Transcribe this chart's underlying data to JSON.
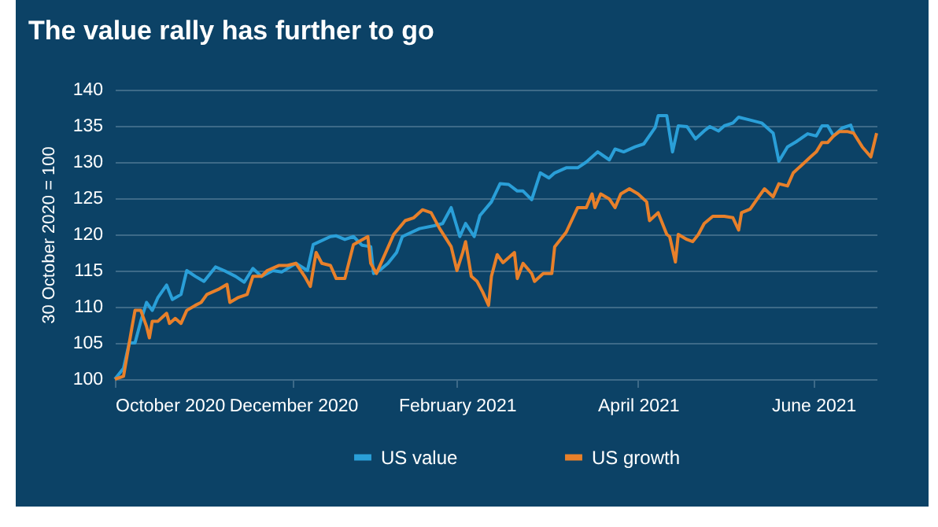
{
  "chart_data": {
    "type": "line",
    "title": "The value rally has further to go",
    "ylabel": "30 October 2020 = 100",
    "xlim": [
      "2020-10-30",
      "2021-07-22"
    ],
    "xticks": [
      {
        "value": "2020-10-30",
        "label": "October 2020"
      },
      {
        "value": "2020-12-31",
        "label": "December 2020"
      },
      {
        "value": "2021-02-26",
        "label": "February 2021"
      },
      {
        "value": "2021-04-30",
        "label": "April 2021"
      },
      {
        "value": "2021-06-30",
        "label": "June 2021"
      }
    ],
    "ylim": [
      100,
      140
    ],
    "yticks": [
      100,
      105,
      110,
      115,
      120,
      125,
      130,
      135,
      140
    ],
    "grid": "y",
    "legend": "bottom",
    "series": [
      {
        "name": "US value",
        "color": "#2a9fd8",
        "x": [
          "2020-10-30",
          "2020-11-02",
          "2020-11-04",
          "2020-11-06",
          "2020-11-08",
          "2020-11-10",
          "2020-11-12",
          "2020-11-14",
          "2020-11-17",
          "2020-11-19",
          "2020-11-22",
          "2020-11-24",
          "2020-11-27",
          "2020-11-30",
          "2020-12-04",
          "2020-12-07",
          "2020-12-11",
          "2020-12-14",
          "2020-12-17",
          "2020-12-20",
          "2020-12-24",
          "2020-12-27",
          "2021-01-01",
          "2021-01-05",
          "2021-01-07",
          "2021-01-13",
          "2021-01-15",
          "2021-01-18",
          "2021-01-21",
          "2021-01-24",
          "2021-01-27",
          "2021-01-28",
          "2021-01-30",
          "2021-02-02",
          "2021-02-05",
          "2021-02-07",
          "2021-02-13",
          "2021-02-18",
          "2021-02-21",
          "2021-02-24",
          "2021-02-27",
          "2021-03-01",
          "2021-03-04",
          "2021-03-06",
          "2021-03-10",
          "2021-03-13",
          "2021-03-16",
          "2021-03-19",
          "2021-03-21",
          "2021-03-24",
          "2021-03-27",
          "2021-03-30",
          "2021-04-01",
          "2021-04-05",
          "2021-04-09",
          "2021-04-12",
          "2021-04-16",
          "2021-04-20",
          "2021-04-22",
          "2021-04-25",
          "2021-04-29",
          "2021-05-02",
          "2021-05-06",
          "2021-05-07",
          "2021-05-10",
          "2021-05-12",
          "2021-05-14",
          "2021-05-17",
          "2021-05-20",
          "2021-05-23",
          "2021-05-25",
          "2021-05-28",
          "2021-05-30",
          "2021-06-02",
          "2021-06-04",
          "2021-06-08",
          "2021-06-12",
          "2021-06-14",
          "2021-06-16",
          "2021-06-18",
          "2021-06-21",
          "2021-06-24",
          "2021-06-28",
          "2021-07-01",
          "2021-07-03",
          "2021-07-05",
          "2021-07-07",
          "2021-07-10",
          "2021-07-13",
          "2021-07-14"
        ],
        "values": [
          100,
          101.5,
          105,
          105,
          108,
          110.6,
          109.5,
          111.3,
          113,
          111,
          111.7,
          115,
          114.2,
          113.5,
          115.5,
          115,
          114.2,
          113.4,
          115.3,
          114.2,
          115,
          114.8,
          116,
          115,
          118.6,
          119.7,
          119.8,
          119.3,
          119.7,
          118.5,
          118.3,
          114.6,
          115,
          116,
          117.5,
          119.7,
          120.8,
          121.2,
          121.5,
          123.7,
          119.7,
          121.5,
          119.7,
          122.6,
          124.5,
          127,
          126.9,
          126,
          126,
          124.8,
          128.5,
          127.8,
          128.5,
          129.2,
          129.2,
          130,
          131.4,
          130.3,
          131.8,
          131.4,
          132.1,
          132.5,
          134.8,
          136.4,
          136.4,
          131.4,
          135,
          134.9,
          133.2,
          134.3,
          134.9,
          134.3,
          135,
          135.4,
          136.2,
          135.8,
          135.4,
          134.7,
          134,
          130.1,
          132.1,
          132.8,
          133.9,
          133.6,
          135,
          135,
          133.6,
          134.7,
          135.1,
          134
        ]
      },
      {
        "name": "US growth",
        "color": "#e8802a",
        "x": [
          "2020-10-30",
          "2020-11-02",
          "2020-11-05",
          "2020-11-06",
          "2020-11-08",
          "2020-11-10",
          "2020-11-11",
          "2020-11-12",
          "2020-11-14",
          "2020-11-17",
          "2020-11-18",
          "2020-11-20",
          "2020-11-22",
          "2020-11-24",
          "2020-11-27",
          "2020-11-29",
          "2020-12-01",
          "2020-12-05",
          "2020-12-08",
          "2020-12-09",
          "2020-12-12",
          "2020-12-15",
          "2020-12-17",
          "2020-12-20",
          "2020-12-22",
          "2020-12-26",
          "2020-12-29",
          "2021-01-01",
          "2021-01-04",
          "2021-01-06",
          "2021-01-08",
          "2021-01-10",
          "2021-01-13",
          "2021-01-15",
          "2021-01-18",
          "2021-01-21",
          "2021-01-26",
          "2021-01-27",
          "2021-01-29",
          "2021-01-31",
          "2021-02-04",
          "2021-02-08",
          "2021-02-11",
          "2021-02-14",
          "2021-02-17",
          "2021-02-20",
          "2021-02-24",
          "2021-02-26",
          "2021-02-28",
          "2021-03-01",
          "2021-03-03",
          "2021-03-05",
          "2021-03-07",
          "2021-03-09",
          "2021-03-10",
          "2021-03-12",
          "2021-03-14",
          "2021-03-18",
          "2021-03-19",
          "2021-03-21",
          "2021-03-24",
          "2021-03-25",
          "2021-03-28",
          "2021-03-31",
          "2021-04-01",
          "2021-04-05",
          "2021-04-09",
          "2021-04-12",
          "2021-04-14",
          "2021-04-15",
          "2021-04-17",
          "2021-04-20",
          "2021-04-22",
          "2021-04-24",
          "2021-04-27",
          "2021-04-30",
          "2021-05-03",
          "2021-05-04",
          "2021-05-07",
          "2021-05-10",
          "2021-05-11",
          "2021-05-13",
          "2021-05-14",
          "2021-05-17",
          "2021-05-19",
          "2021-05-21",
          "2021-05-23",
          "2021-05-26",
          "2021-05-30",
          "2021-06-02",
          "2021-06-04",
          "2021-06-05",
          "2021-06-08",
          "2021-06-11",
          "2021-06-13",
          "2021-06-16",
          "2021-06-18",
          "2021-06-21",
          "2021-06-23",
          "2021-06-26",
          "2021-06-29",
          "2021-07-01",
          "2021-07-03",
          "2021-07-05",
          "2021-07-07",
          "2021-07-09",
          "2021-07-12",
          "2021-07-14",
          "2021-07-17",
          "2021-07-20",
          "2021-07-22"
        ],
        "values": [
          100,
          100.4,
          107.3,
          109.5,
          109.5,
          107.3,
          105.7,
          108,
          108,
          109.1,
          107.7,
          108.4,
          107.7,
          109.5,
          110.2,
          110.6,
          111.7,
          112.4,
          113.1,
          110.6,
          111.3,
          111.7,
          114.2,
          114.2,
          115,
          115.7,
          115.7,
          116,
          114.2,
          112.8,
          117.5,
          116,
          115.7,
          113.9,
          113.9,
          118.6,
          119.7,
          116,
          114.6,
          116.4,
          120,
          121.9,
          122.3,
          123.4,
          123,
          120.8,
          118.3,
          115,
          117.5,
          119,
          114.2,
          113.5,
          112,
          110.2,
          114.2,
          117.2,
          116.1,
          117.5,
          113.9,
          116,
          114.6,
          113.5,
          114.6,
          114.6,
          118.3,
          120.3,
          123.7,
          123.7,
          125.6,
          123.7,
          125.6,
          124.9,
          123.7,
          125.6,
          126.3,
          125.6,
          124.5,
          121.9,
          123,
          120,
          119.7,
          116.2,
          120,
          119.3,
          119,
          120,
          121.5,
          122.5,
          122.5,
          122.3,
          120.6,
          123,
          123.5,
          125.2,
          126.3,
          125.2,
          127,
          126.7,
          128.5,
          129.6,
          130.7,
          131.4,
          132.7,
          132.7,
          133.6,
          134.2,
          134.2,
          134,
          132.1,
          130.7,
          134
        ]
      }
    ]
  }
}
